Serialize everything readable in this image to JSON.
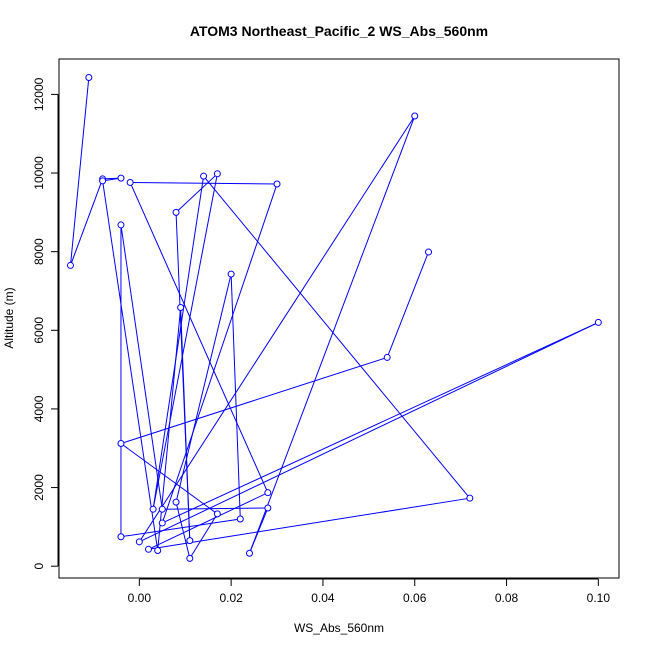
{
  "chart_data": {
    "type": "line",
    "title": "ATOM3 Northeast_Pacific_2 WS_Abs_560nm",
    "xlabel": "WS_Abs_560nm",
    "ylabel": "Altitude (m)",
    "xlim": [
      -0.0175,
      0.1045
    ],
    "ylim": [
      -300,
      12900
    ],
    "x_ticks": [
      0.0,
      0.02,
      0.04,
      0.06,
      0.08,
      0.1
    ],
    "x_tick_labels": [
      "0.00",
      "0.02",
      "0.04",
      "0.06",
      "0.08",
      "0.10"
    ],
    "y_ticks": [
      0,
      2000,
      4000,
      6000,
      8000,
      10000,
      12000
    ],
    "y_tick_labels": [
      "0",
      "2000",
      "4000",
      "6000",
      "8000",
      "10000",
      "12000"
    ],
    "grid": false,
    "series_color": "#0000ff",
    "series": [
      {
        "points": [
          {
            "x": -0.011,
            "y": 12430
          },
          {
            "x": -0.015,
            "y": 7650
          },
          {
            "x": -0.008,
            "y": 9850
          },
          {
            "x": -0.004,
            "y": 9870
          },
          {
            "x": -0.008,
            "y": 9800
          },
          {
            "x": 0.004,
            "y": 400
          },
          {
            "x": 0.009,
            "y": 6580
          },
          {
            "x": 0.011,
            "y": 650
          },
          {
            "x": 0.008,
            "y": 9000
          },
          {
            "x": 0.017,
            "y": 9980
          },
          {
            "x": 0.003,
            "y": 1450
          },
          {
            "x": 0.014,
            "y": 9920
          },
          {
            "x": 0.072,
            "y": 1730
          },
          {
            "x": 0.002,
            "y": 430
          },
          {
            "x": 0.028,
            "y": 1870
          },
          {
            "x": -0.002,
            "y": 9760
          },
          {
            "x": 0.03,
            "y": 9720
          },
          {
            "x": 0.005,
            "y": 1100
          },
          {
            "x": 0.1,
            "y": 6200
          },
          {
            "x": 0.0,
            "y": 620
          },
          {
            "x": 0.06,
            "y": 11450
          },
          {
            "x": 0.024,
            "y": 330
          },
          {
            "x": 0.028,
            "y": 1480
          },
          {
            "x": 0.005,
            "y": 1450
          },
          {
            "x": -0.004,
            "y": 8680
          },
          {
            "x": -0.004,
            "y": 750
          },
          {
            "x": 0.022,
            "y": 1200
          },
          {
            "x": 0.02,
            "y": 7430
          },
          {
            "x": 0.008,
            "y": 1630
          },
          {
            "x": 0.011,
            "y": 200
          },
          {
            "x": 0.017,
            "y": 1330
          },
          {
            "x": -0.004,
            "y": 3120
          },
          {
            "x": 0.054,
            "y": 5310
          },
          {
            "x": 0.063,
            "y": 7990
          }
        ]
      }
    ]
  }
}
